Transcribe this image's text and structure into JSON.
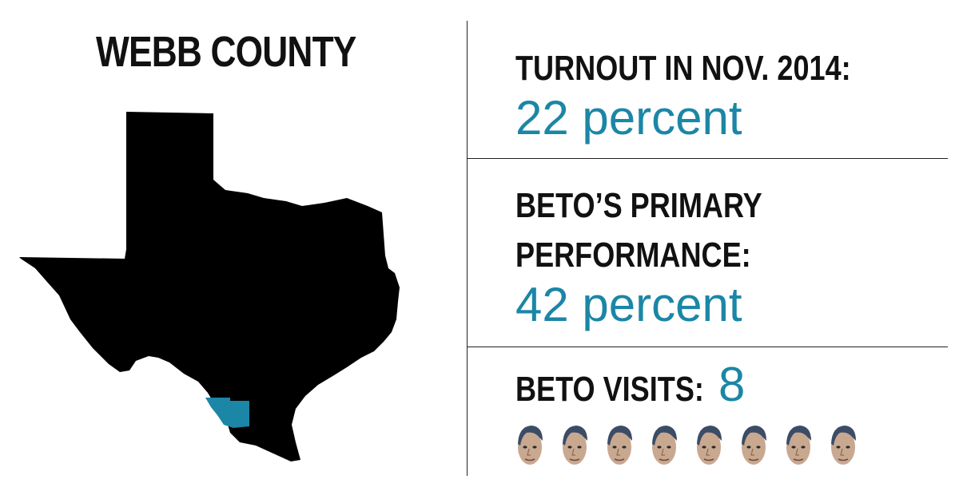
{
  "county": {
    "title": "WEBB COUNTY"
  },
  "map": {
    "state_icon": "texas-map-icon",
    "state_color": "#000000",
    "county_color": "#1b86a6"
  },
  "stats": {
    "turnout": {
      "label": "TURNOUT IN NOV. 2014:",
      "value": "22 percent"
    },
    "primary": {
      "label_line1": "BETO’S PRIMARY",
      "label_line2": "PERFORMANCE:",
      "value": "42 percent"
    },
    "visits": {
      "label": "BETO VISITS:",
      "value": "8",
      "count": 8,
      "face_icon": "beto-face-icon"
    }
  },
  "colors": {
    "accent": "#1b86a6",
    "text": "#111111"
  }
}
